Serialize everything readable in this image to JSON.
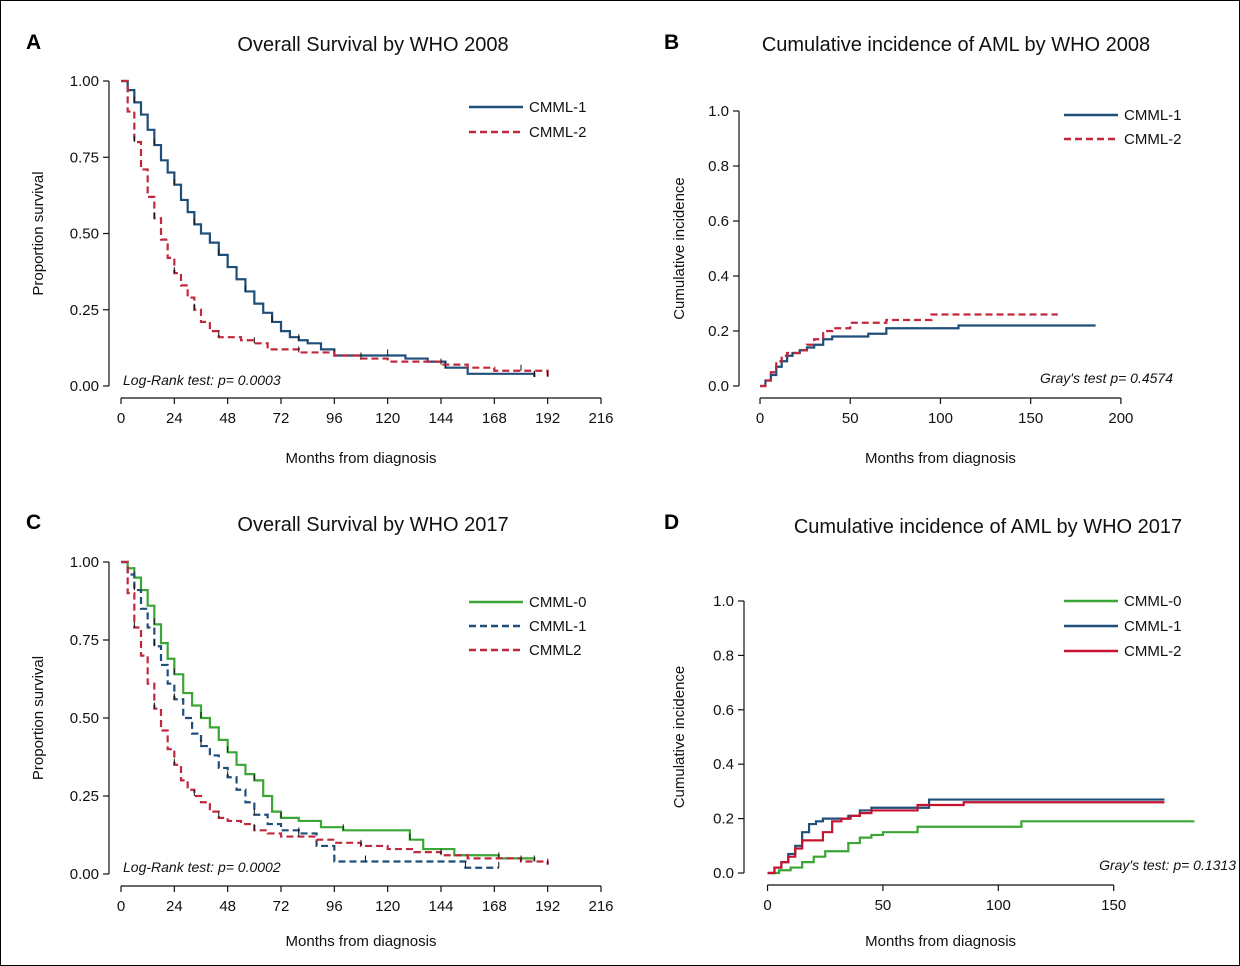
{
  "chart_data": [
    {
      "id": "A",
      "letter": "A",
      "type": "line",
      "title": "Overall Survival by WHO 2008",
      "xlabel": "Months from diagnosis",
      "ylabel": "Proportion survival",
      "xlim": [
        0,
        216
      ],
      "ylim": [
        0,
        1
      ],
      "xticks": [
        0,
        24,
        48,
        72,
        96,
        120,
        144,
        168,
        192,
        216
      ],
      "yticks": [
        0,
        0.25,
        0.5,
        0.75,
        1.0
      ],
      "ytick_labels": [
        "0.00",
        "0.25",
        "0.50",
        "0.75",
        "1.00"
      ],
      "annotation": "Log-Rank test: p= 0.0003",
      "legend_position": "top-right",
      "series": [
        {
          "name": "CMML-1",
          "color": "#1f4e79",
          "dash": "solid",
          "censored": true,
          "x": [
            0,
            3,
            6,
            9,
            12,
            15,
            18,
            21,
            24,
            27,
            30,
            33,
            36,
            40,
            44,
            48,
            52,
            56,
            60,
            64,
            68,
            72,
            76,
            80,
            84,
            90,
            96,
            104,
            112,
            120,
            128,
            138,
            146,
            156,
            170,
            186
          ],
          "y": [
            1.0,
            0.97,
            0.93,
            0.89,
            0.84,
            0.79,
            0.74,
            0.7,
            0.66,
            0.61,
            0.57,
            0.53,
            0.5,
            0.47,
            0.43,
            0.39,
            0.35,
            0.31,
            0.27,
            0.24,
            0.21,
            0.18,
            0.16,
            0.15,
            0.14,
            0.12,
            0.1,
            0.1,
            0.1,
            0.1,
            0.09,
            0.08,
            0.06,
            0.04,
            0.04,
            0.03
          ]
        },
        {
          "name": "CMML-2",
          "color": "#c0283e",
          "dash": "dashed",
          "censored": true,
          "x": [
            0,
            3,
            6,
            9,
            12,
            15,
            18,
            21,
            24,
            27,
            30,
            33,
            36,
            40,
            44,
            48,
            54,
            60,
            66,
            72,
            80,
            88,
            96,
            108,
            120,
            132,
            144,
            156,
            168,
            180,
            192
          ],
          "y": [
            1.0,
            0.9,
            0.8,
            0.71,
            0.62,
            0.55,
            0.48,
            0.42,
            0.37,
            0.33,
            0.29,
            0.25,
            0.21,
            0.18,
            0.16,
            0.16,
            0.15,
            0.14,
            0.12,
            0.12,
            0.11,
            0.11,
            0.1,
            0.09,
            0.08,
            0.08,
            0.07,
            0.06,
            0.05,
            0.05,
            0.03
          ]
        }
      ]
    },
    {
      "id": "B",
      "letter": "B",
      "type": "line",
      "title": "Cumulative incidence of AML by WHO 2008",
      "xlabel": "Months from diagnosis",
      "ylabel": "Cumulative incidence",
      "xlim": [
        -5,
        225
      ],
      "ylim": [
        0,
        1
      ],
      "xticks": [
        0,
        50,
        100,
        150,
        200
      ],
      "yticks": [
        0,
        0.2,
        0.4,
        0.6,
        0.8,
        1.0
      ],
      "ytick_labels": [
        "0.0",
        "0.2",
        "0.4",
        "0.6",
        "0.8",
        "1.0"
      ],
      "annotation": "Gray's test p= 0.4574",
      "legend_position": "top-right",
      "series": [
        {
          "name": "CMML-1",
          "color": "#1f4e79",
          "dash": "solid",
          "censored": false,
          "x": [
            0,
            3,
            6,
            9,
            12,
            15,
            18,
            22,
            26,
            30,
            35,
            40,
            45,
            50,
            55,
            60,
            65,
            70,
            80,
            90,
            100,
            110,
            120,
            140,
            160,
            186
          ],
          "y": [
            0,
            0.02,
            0.04,
            0.07,
            0.09,
            0.11,
            0.12,
            0.13,
            0.14,
            0.15,
            0.17,
            0.18,
            0.18,
            0.18,
            0.18,
            0.19,
            0.19,
            0.21,
            0.21,
            0.21,
            0.21,
            0.22,
            0.22,
            0.22,
            0.22,
            0.22
          ]
        },
        {
          "name": "CMML-2",
          "color": "#c0283e",
          "dash": "dashed",
          "censored": false,
          "x": [
            0,
            3,
            6,
            9,
            12,
            15,
            18,
            22,
            26,
            30,
            35,
            40,
            45,
            50,
            60,
            70,
            80,
            95,
            110,
            130,
            150,
            165
          ],
          "y": [
            0,
            0.02,
            0.05,
            0.09,
            0.11,
            0.12,
            0.12,
            0.13,
            0.15,
            0.17,
            0.2,
            0.21,
            0.21,
            0.23,
            0.23,
            0.24,
            0.24,
            0.26,
            0.26,
            0.26,
            0.26,
            0.26
          ]
        }
      ]
    },
    {
      "id": "C",
      "letter": "C",
      "type": "line",
      "title": "Overall Survival by WHO 2017",
      "xlabel": "Months from diagnosis",
      "ylabel": "Proportion survival",
      "xlim": [
        0,
        216
      ],
      "ylim": [
        0,
        1
      ],
      "xticks": [
        0,
        24,
        48,
        72,
        96,
        120,
        144,
        168,
        192,
        216
      ],
      "yticks": [
        0,
        0.25,
        0.5,
        0.75,
        1.0
      ],
      "ytick_labels": [
        "0.00",
        "0.25",
        "0.50",
        "0.75",
        "1.00"
      ],
      "annotation": "Log-Rank test: p= 0.0002",
      "legend_position": "top-right",
      "series": [
        {
          "name": "CMML-0",
          "color": "#3aa635",
          "dash": "solid",
          "censored": true,
          "x": [
            0,
            3,
            6,
            9,
            12,
            15,
            18,
            21,
            24,
            28,
            32,
            36,
            40,
            44,
            48,
            52,
            56,
            60,
            64,
            68,
            72,
            80,
            90,
            100,
            110,
            120,
            130,
            136,
            150,
            170,
            186
          ],
          "y": [
            1.0,
            0.98,
            0.95,
            0.91,
            0.86,
            0.8,
            0.74,
            0.69,
            0.64,
            0.58,
            0.54,
            0.5,
            0.47,
            0.43,
            0.39,
            0.35,
            0.32,
            0.3,
            0.25,
            0.2,
            0.18,
            0.17,
            0.15,
            0.14,
            0.14,
            0.14,
            0.11,
            0.08,
            0.06,
            0.05,
            0.04
          ]
        },
        {
          "name": "CMML-1",
          "color": "#1f4e79",
          "dash": "dashed",
          "censored": true,
          "x": [
            0,
            3,
            6,
            9,
            12,
            15,
            18,
            21,
            24,
            28,
            32,
            36,
            40,
            44,
            48,
            52,
            56,
            60,
            66,
            72,
            80,
            88,
            96,
            110,
            125,
            140,
            155,
            170
          ],
          "y": [
            1.0,
            0.96,
            0.91,
            0.85,
            0.79,
            0.73,
            0.67,
            0.61,
            0.56,
            0.5,
            0.45,
            0.41,
            0.38,
            0.34,
            0.31,
            0.27,
            0.23,
            0.19,
            0.16,
            0.14,
            0.13,
            0.09,
            0.04,
            0.04,
            0.04,
            0.04,
            0.02,
            0.02
          ]
        },
        {
          "name": "CMML2",
          "color": "#c0283e",
          "dash": "dashed",
          "censored": true,
          "x": [
            0,
            3,
            6,
            9,
            12,
            15,
            18,
            21,
            24,
            27,
            30,
            33,
            36,
            40,
            44,
            48,
            54,
            60,
            66,
            72,
            80,
            88,
            96,
            108,
            120,
            132,
            144,
            156,
            168,
            180,
            192
          ],
          "y": [
            1.0,
            0.9,
            0.79,
            0.7,
            0.61,
            0.53,
            0.46,
            0.4,
            0.35,
            0.3,
            0.27,
            0.25,
            0.23,
            0.2,
            0.18,
            0.17,
            0.16,
            0.14,
            0.13,
            0.12,
            0.12,
            0.11,
            0.1,
            0.09,
            0.08,
            0.07,
            0.06,
            0.05,
            0.05,
            0.04,
            0.03
          ]
        }
      ]
    },
    {
      "id": "D",
      "letter": "D",
      "type": "line",
      "title": "Cumulative incidence of AML by WHO 2017",
      "xlabel": "Months from diagnosis",
      "ylabel": "Cumulative incidence",
      "xlim": [
        -5,
        190
      ],
      "ylim": [
        0,
        1
      ],
      "xticks": [
        0,
        50,
        100,
        150
      ],
      "yticks": [
        0,
        0.2,
        0.4,
        0.6,
        0.8,
        1.0
      ],
      "ytick_labels": [
        "0.0",
        "0.2",
        "0.4",
        "0.6",
        "0.8",
        "1.0"
      ],
      "annotation": "Gray's test: p= 0.1313",
      "legend_position": "top-right",
      "series": [
        {
          "name": "CMML-0",
          "color": "#3aa635",
          "dash": "solid",
          "censored": false,
          "x": [
            0,
            5,
            10,
            15,
            20,
            25,
            30,
            35,
            40,
            45,
            50,
            55,
            60,
            65,
            70,
            80,
            90,
            100,
            110,
            120,
            140,
            160,
            185
          ],
          "y": [
            0,
            0.01,
            0.02,
            0.04,
            0.06,
            0.08,
            0.08,
            0.11,
            0.13,
            0.14,
            0.15,
            0.15,
            0.15,
            0.17,
            0.17,
            0.17,
            0.17,
            0.17,
            0.19,
            0.19,
            0.19,
            0.19,
            0.19
          ]
        },
        {
          "name": "CMML-1",
          "color": "#1f4e79",
          "dash": "solid",
          "censored": false,
          "x": [
            0,
            3,
            6,
            9,
            12,
            15,
            18,
            21,
            24,
            30,
            35,
            40,
            45,
            50,
            55,
            60,
            70,
            90,
            110,
            130,
            150,
            172
          ],
          "y": [
            0,
            0.02,
            0.04,
            0.07,
            0.1,
            0.15,
            0.18,
            0.19,
            0.2,
            0.2,
            0.21,
            0.23,
            0.24,
            0.24,
            0.24,
            0.24,
            0.27,
            0.27,
            0.27,
            0.27,
            0.27,
            0.27
          ]
        },
        {
          "name": "CMML-2",
          "color": "#c41230",
          "dash": "solid",
          "censored": false,
          "x": [
            0,
            3,
            6,
            9,
            12,
            15,
            18,
            21,
            24,
            28,
            32,
            36,
            40,
            45,
            50,
            55,
            60,
            65,
            75,
            85,
            100,
            130,
            172
          ],
          "y": [
            0,
            0.02,
            0.04,
            0.06,
            0.09,
            0.12,
            0.12,
            0.12,
            0.15,
            0.19,
            0.2,
            0.21,
            0.22,
            0.23,
            0.23,
            0.23,
            0.23,
            0.25,
            0.25,
            0.26,
            0.26,
            0.26,
            0.26
          ]
        }
      ]
    }
  ]
}
